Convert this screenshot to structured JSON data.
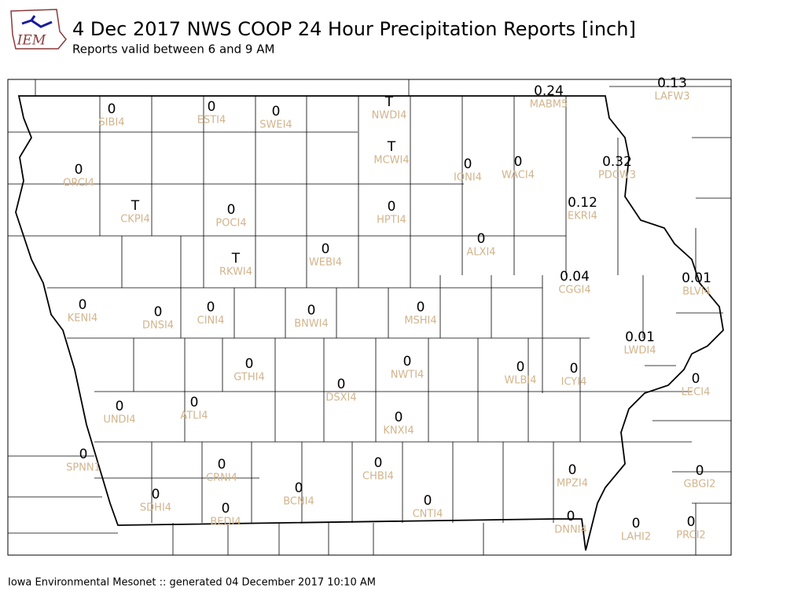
{
  "header": {
    "logo": "IEM",
    "title": "4 Dec 2017 NWS COOP 24 Hour Precipitation Reports [inch]",
    "subtitle": "Reports valid between 6 and 9 AM"
  },
  "stations": [
    {
      "value": "0",
      "id": "SIBI4"
    },
    {
      "value": "0",
      "id": "ESTI4"
    },
    {
      "value": "0",
      "id": "SWEI4"
    },
    {
      "value": "T",
      "id": "NWDI4"
    },
    {
      "value": "0.24",
      "id": "MABM5"
    },
    {
      "value": "0.13",
      "id": "LAFW3"
    },
    {
      "value": "0",
      "id": "ORCI4"
    },
    {
      "value": "T",
      "id": "MCWI4"
    },
    {
      "value": "0",
      "id": "IONI4"
    },
    {
      "value": "0",
      "id": "WACI4"
    },
    {
      "value": "0.32",
      "id": "PDCW3"
    },
    {
      "value": "T",
      "id": "CKPI4"
    },
    {
      "value": "0",
      "id": "POCI4"
    },
    {
      "value": "0",
      "id": "HPTI4"
    },
    {
      "value": "0.12",
      "id": "EKRI4"
    },
    {
      "value": "0",
      "id": "ALXI4"
    },
    {
      "value": "0",
      "id": "WEBI4"
    },
    {
      "value": "T",
      "id": "RKWI4"
    },
    {
      "value": "0.04",
      "id": "CGGI4"
    },
    {
      "value": "0.01",
      "id": "BLVI4"
    },
    {
      "value": "0",
      "id": "KENI4"
    },
    {
      "value": "0",
      "id": "DNSI4"
    },
    {
      "value": "0",
      "id": "CINI4"
    },
    {
      "value": "0",
      "id": "BNWI4"
    },
    {
      "value": "0",
      "id": "MSHI4"
    },
    {
      "value": "0.01",
      "id": "LWDI4"
    },
    {
      "value": "0",
      "id": "GTHI4"
    },
    {
      "value": "0",
      "id": "NWTI4"
    },
    {
      "value": "0",
      "id": "WLBI4"
    },
    {
      "value": "0",
      "id": "ICYI4"
    },
    {
      "value": "0",
      "id": "LECI4"
    },
    {
      "value": "0",
      "id": "DSXI4"
    },
    {
      "value": "0",
      "id": "ATLI4"
    },
    {
      "value": "0",
      "id": "UNDI4"
    },
    {
      "value": "0",
      "id": "KNXI4"
    },
    {
      "value": "0",
      "id": "SPNN1"
    },
    {
      "value": "0",
      "id": "CRNI4"
    },
    {
      "value": "0",
      "id": "CHBI4"
    },
    {
      "value": "0",
      "id": "MPZI4"
    },
    {
      "value": "0",
      "id": "GBGI2"
    },
    {
      "value": "0",
      "id": "SDHI4"
    },
    {
      "value": "0",
      "id": "BCNI4"
    },
    {
      "value": "0",
      "id": "CNTI4"
    },
    {
      "value": "0",
      "id": "BEDI4"
    },
    {
      "value": "0",
      "id": "DNNI4"
    },
    {
      "value": "0",
      "id": "LAHI2"
    },
    {
      "value": "0",
      "id": "PRCI2"
    }
  ],
  "footer": "Iowa Environmental Mesonet :: generated 04 December 2017 10:10 AM"
}
